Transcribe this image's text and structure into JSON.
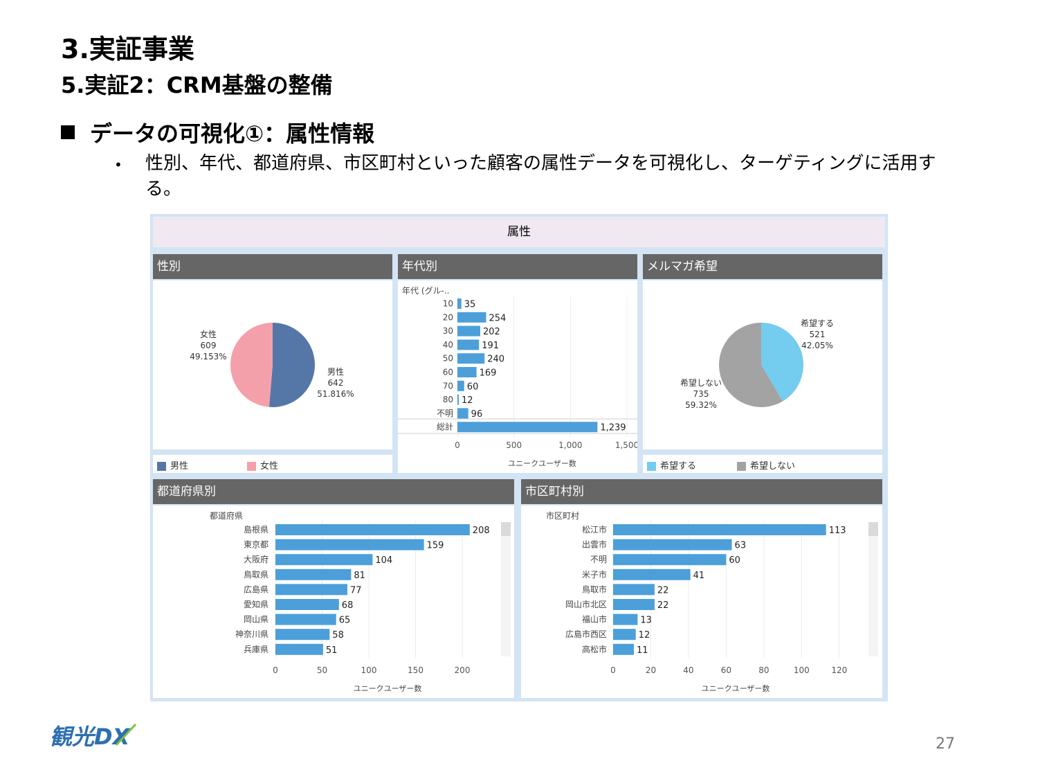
{
  "slide": {
    "title": "3.実証事業",
    "subtitle": "5.実証2：CRM基盤の整備",
    "section": "データの可視化①：属性情報",
    "bullet": "性別、年代、都道府県、市区町村といった顧客の属性データを可視化し、ターゲティングに活用する。",
    "page_number": "27",
    "logo_text": "観光DX"
  },
  "dashboard": {
    "header": "属性",
    "gender_title": "性別",
    "age_title": "年代別",
    "mail_title": "メルマガ希望",
    "pref_title": "都道府県別",
    "city_title": "市区町村別"
  },
  "colors": {
    "male": "#5577a7",
    "female": "#f4a0aa",
    "want": "#74ccee",
    "nowant": "#a3a3a3",
    "bar": "#4c9fd9",
    "panel_title": "#666666",
    "dash_border": "#d3e4f4"
  },
  "chart_data": [
    {
      "id": "gender",
      "type": "pie",
      "series": [
        {
          "name": "男性",
          "value": 642,
          "pct": "51.816%"
        },
        {
          "name": "女性",
          "value": 609,
          "pct": "49.153%"
        }
      ],
      "legend": [
        "男性",
        "女性"
      ]
    },
    {
      "id": "age",
      "type": "bar",
      "orientation": "horizontal",
      "axis_title_y": "年代 (グル-..",
      "xlabel": "ユニークユーザー数",
      "categories": [
        "10",
        "20",
        "30",
        "40",
        "50",
        "60",
        "70",
        "80",
        "不明",
        "総計"
      ],
      "values": [
        35,
        254,
        202,
        191,
        240,
        169,
        60,
        12,
        96,
        1239
      ],
      "value_labels": [
        "35",
        "254",
        "202",
        "191",
        "240",
        "169",
        "60",
        "12",
        "96",
        "1,239"
      ],
      "xticks": [
        "0",
        "500",
        "1,000",
        "1,500"
      ],
      "xlim": [
        0,
        1500
      ]
    },
    {
      "id": "mail",
      "type": "pie",
      "series": [
        {
          "name": "希望する",
          "value": 521,
          "pct": "42.05%"
        },
        {
          "name": "希望しない",
          "value": 735,
          "pct": "59.32%"
        }
      ],
      "legend": [
        "希望する",
        "希望しない"
      ]
    },
    {
      "id": "pref",
      "type": "bar",
      "orientation": "horizontal",
      "axis_title_y": "都道府県",
      "xlabel": "ユニークユーザー数",
      "categories": [
        "島根県",
        "東京都",
        "大阪府",
        "鳥取県",
        "広島県",
        "愛知県",
        "岡山県",
        "神奈川県",
        "兵庫県"
      ],
      "values": [
        208,
        159,
        104,
        81,
        77,
        68,
        65,
        58,
        51
      ],
      "xticks": [
        "0",
        "50",
        "100",
        "150",
        "200"
      ],
      "xlim": [
        0,
        240
      ]
    },
    {
      "id": "city",
      "type": "bar",
      "orientation": "horizontal",
      "axis_title_y": "市区町村",
      "xlabel": "ユニークユーザー数",
      "categories": [
        "松江市",
        "出雲市",
        "不明",
        "米子市",
        "鳥取市",
        "岡山市北区",
        "福山市",
        "広島市西区",
        "高松市"
      ],
      "values": [
        113,
        63,
        60,
        41,
        22,
        22,
        13,
        12,
        11
      ],
      "xticks": [
        "0",
        "20",
        "40",
        "60",
        "80",
        "100",
        "120"
      ],
      "xlim": [
        0,
        130
      ]
    }
  ]
}
